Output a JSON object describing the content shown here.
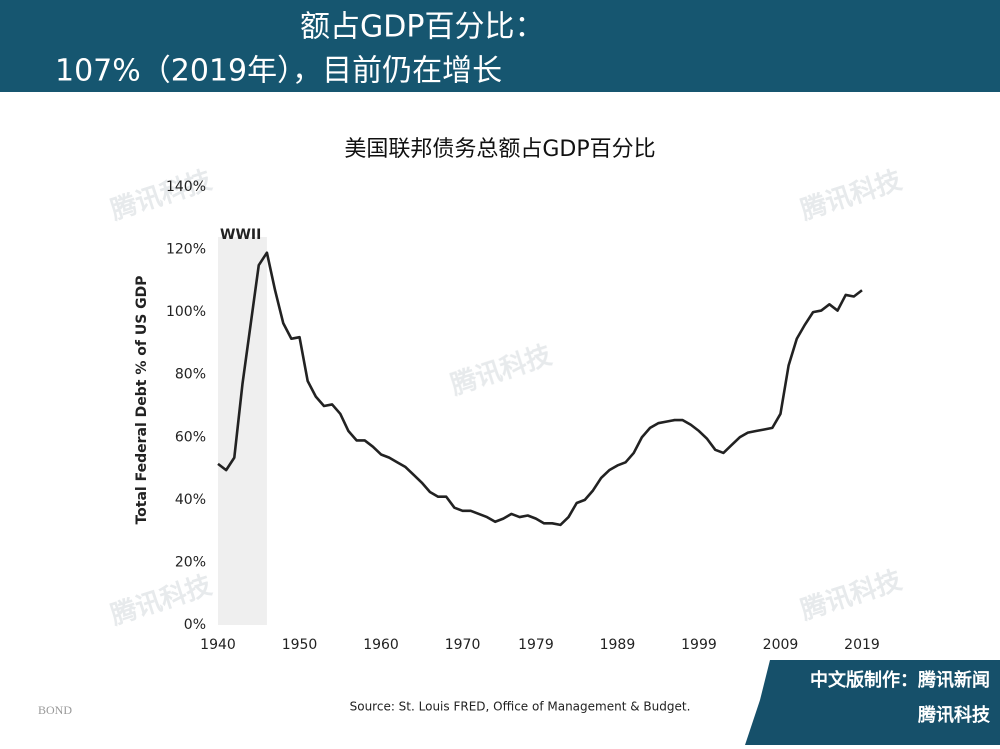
{
  "header": {
    "line1": "额占GDP百分比：",
    "line2": "107%（2019年），目前仍在增长"
  },
  "chart_data": {
    "type": "line",
    "title": "美国联邦债务总额占GDP百分比",
    "y_label": "Total Federal Debt % of US GDP",
    "x": [
      1940,
      1941,
      1942,
      1943,
      1944,
      1945,
      1946,
      1947,
      1948,
      1949,
      1950,
      1951,
      1952,
      1953,
      1954,
      1955,
      1956,
      1957,
      1958,
      1959,
      1960,
      1961,
      1962,
      1963,
      1964,
      1965,
      1966,
      1967,
      1968,
      1969,
      1970,
      1971,
      1972,
      1973,
      1974,
      1975,
      1976,
      1977,
      1978,
      1979,
      1980,
      1981,
      1982,
      1983,
      1984,
      1985,
      1986,
      1987,
      1988,
      1989,
      1990,
      1991,
      1992,
      1993,
      1994,
      1995,
      1996,
      1997,
      1998,
      1999,
      2000,
      2001,
      2002,
      2003,
      2004,
      2005,
      2006,
      2007,
      2008,
      2009,
      2010,
      2011,
      2012,
      2013,
      2014,
      2015,
      2016,
      2017,
      2018,
      2019
    ],
    "series": [
      {
        "name": "Total Federal Debt % of US GDP",
        "color": "#222222",
        "values": [
          51.5,
          49.5,
          53.5,
          77,
          96,
          115,
          119,
          107,
          96.5,
          91.5,
          92,
          78,
          73,
          70,
          70.5,
          67.5,
          62,
          59,
          59,
          57,
          54.5,
          53.5,
          52,
          50.5,
          48,
          45.5,
          42.5,
          41,
          41,
          37.5,
          36.5,
          36.5,
          35.5,
          34.5,
          33,
          34,
          35.5,
          34.5,
          35,
          34,
          32.5,
          32.5,
          32,
          34.5,
          39,
          40,
          43,
          47,
          49.5,
          51,
          52,
          55,
          60,
          63,
          64.5,
          65,
          65.5,
          65.5,
          64,
          62,
          59.5,
          56,
          55,
          57.5,
          60,
          61.5,
          62,
          62.5,
          63,
          67.5,
          83,
          91.5,
          96,
          100,
          100.5,
          102.5,
          100.5,
          105.5,
          105,
          107
        ]
      }
    ],
    "annotations": [
      {
        "text": "WWII",
        "x0": 1940,
        "x1": 1946
      }
    ],
    "xlim": [
      1940,
      2019
    ],
    "xticks": [
      1940,
      1950,
      1960,
      1970,
      1979,
      1989,
      1999,
      2009,
      2019
    ],
    "ylim": [
      0,
      140
    ],
    "yticks": [
      {
        "value": 0,
        "label": "0%"
      },
      {
        "value": 20,
        "label": "20%"
      },
      {
        "value": 40,
        "label": "40%"
      },
      {
        "value": 60,
        "label": "60%"
      },
      {
        "value": 80,
        "label": "80%"
      },
      {
        "value": 100,
        "label": "100%"
      },
      {
        "value": 120,
        "label": "120%"
      },
      {
        "value": 140,
        "label": "140%"
      }
    ],
    "grid": false
  },
  "source": "Source: St. Louis FRED, Office of Management & Budget.",
  "logo": "BOND",
  "badge": {
    "line1": "中文版制作：腾讯新闻",
    "line2": "腾讯科技"
  },
  "watermark": "腾讯科技"
}
